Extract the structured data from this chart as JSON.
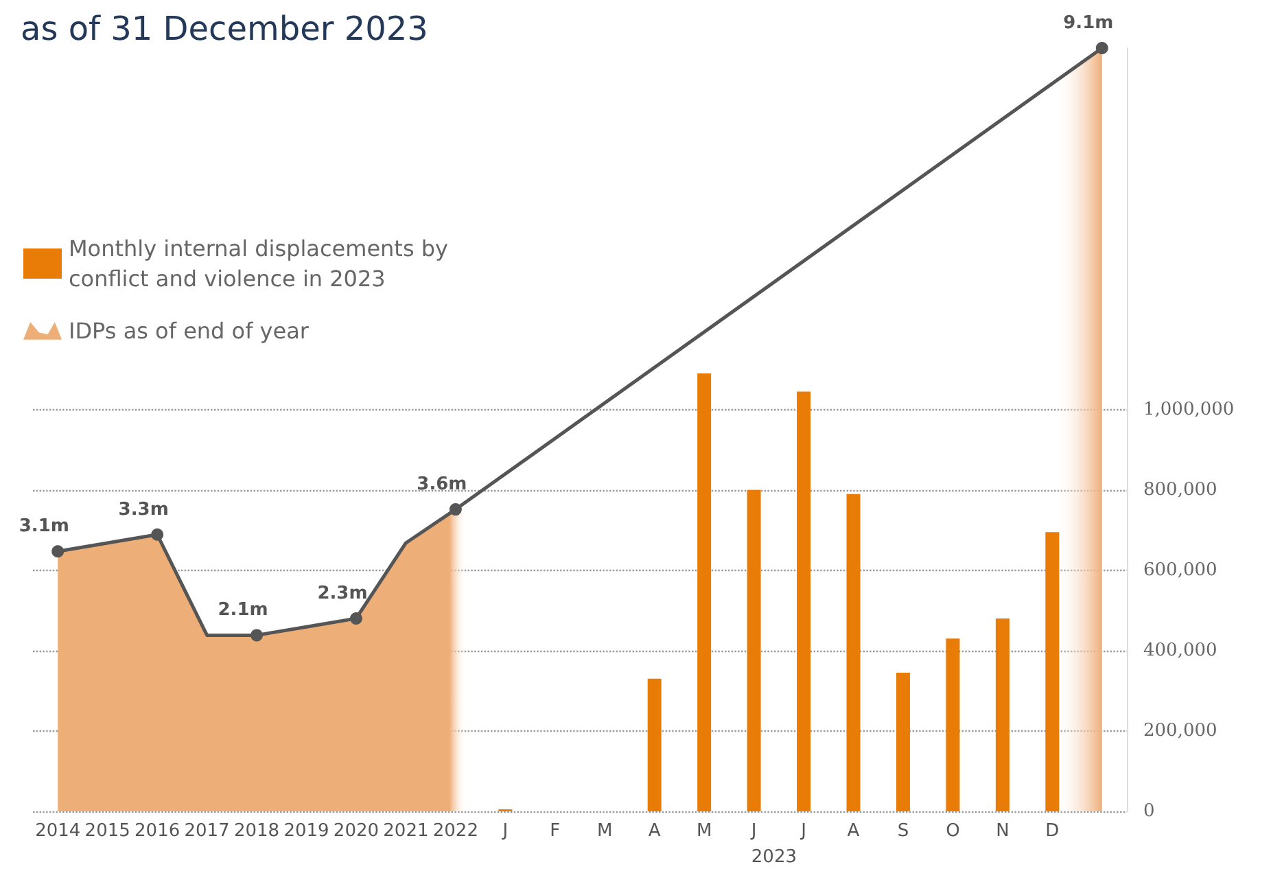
{
  "chart_data": {
    "type": "bar",
    "title": "as of 31 December 2023",
    "categories": [
      "2014",
      "2015",
      "2016",
      "2017",
      "2018",
      "2019",
      "2020",
      "2021",
      "2022",
      "J",
      "F",
      "M",
      "A",
      "M",
      "J",
      "J",
      "A",
      "S",
      "O",
      "N",
      "D",
      null
    ],
    "series": [
      {
        "name": "Monthly internal displacements by conflict and violence in 2023",
        "color": "#e87c07",
        "values": [
          null,
          null,
          null,
          null,
          null,
          null,
          null,
          null,
          null,
          5000,
          0,
          0,
          330000,
          1090000,
          800000,
          1045000,
          790000,
          345000,
          430000,
          480000,
          695000,
          null
        ]
      },
      {
        "name": "IDPs as of end of year",
        "type": "area",
        "axis": "y2",
        "color": "#eeae78",
        "values": [
          3.1,
          3.2,
          3.3,
          2.1,
          2.1,
          2.2,
          2.3,
          3.2,
          3.6,
          null,
          null,
          null,
          null,
          null,
          null,
          null,
          null,
          null,
          null,
          null,
          null,
          9.1
        ],
        "value_labels": [
          "3.1m",
          null,
          "3.3m",
          null,
          "2.1m",
          null,
          "2.3m",
          null,
          "3.6m",
          null,
          null,
          null,
          null,
          null,
          null,
          null,
          null,
          null,
          null,
          null,
          null,
          "9.1m"
        ]
      }
    ],
    "ylim": [
      0,
      1900000
    ],
    "yticks": [
      0,
      {
        "value": 200000,
        "label": "200,000"
      },
      {
        "value": 400000,
        "label": "400,000"
      },
      {
        "value": 600000,
        "label": "600,000"
      },
      {
        "value": 800000,
        "label": "800,000"
      },
      {
        "value": 1000000,
        "label": "1,000,000"
      }
    ],
    "annotations": [
      "2023"
    ],
    "grid": "y",
    "legend": "top left"
  }
}
